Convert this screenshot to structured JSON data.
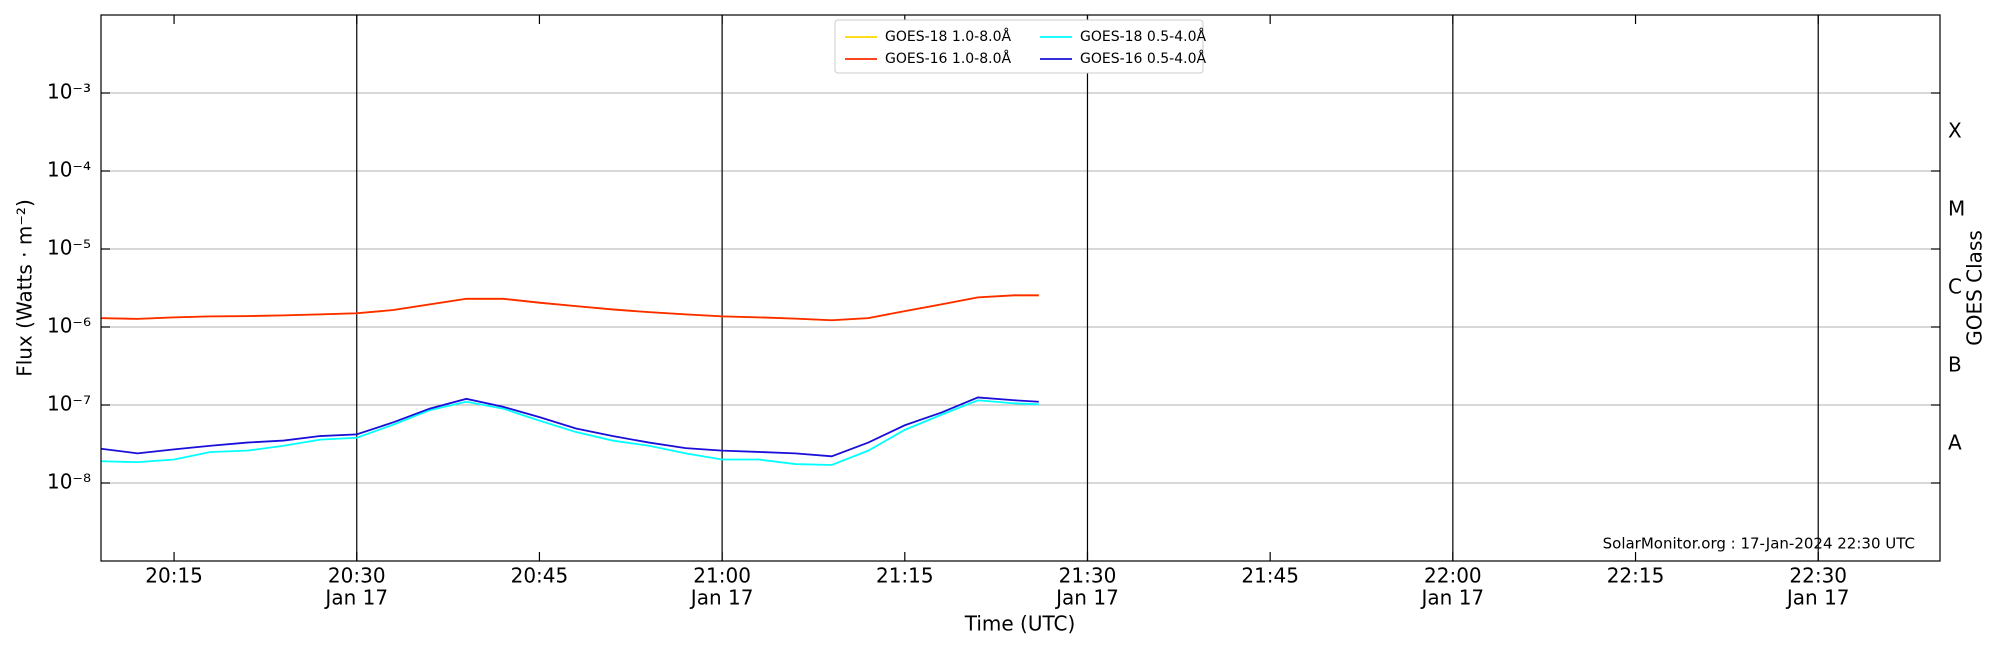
{
  "chart_data": {
    "type": "line",
    "x_label": "Time (UTC)",
    "y_label": "Flux (Watts · m⁻²)",
    "y2_label": "GOES Class",
    "annotation": "SolarMonitor.org : 17-Jan-2024 22:30 UTC",
    "yscale": "log",
    "grid": true,
    "legend": "upper center",
    "xlim": [
      "20:09",
      "22:40"
    ],
    "xticks": [
      {
        "value": "20:15",
        "label": "20:15"
      },
      {
        "value": "20:30",
        "label": "20:30",
        "date": "Jan 17"
      },
      {
        "value": "20:45",
        "label": "20:45"
      },
      {
        "value": "21:00",
        "label": "21:00",
        "date": "Jan 17"
      },
      {
        "value": "21:15",
        "label": "21:15"
      },
      {
        "value": "21:30",
        "label": "21:30",
        "date": "Jan 17"
      },
      {
        "value": "21:45",
        "label": "21:45"
      },
      {
        "value": "22:00",
        "label": "22:00",
        "date": "Jan 17"
      },
      {
        "value": "22:15",
        "label": "22:15"
      },
      {
        "value": "22:30",
        "label": "22:30",
        "date": "Jan 17"
      }
    ],
    "ylim": [
      1e-09,
      0.01
    ],
    "yticks": [
      {
        "value": 1e-08,
        "label": "10⁻⁸"
      },
      {
        "value": 1e-07,
        "label": "10⁻⁷"
      },
      {
        "value": 1e-06,
        "label": "10⁻⁶"
      },
      {
        "value": 1e-05,
        "label": "10⁻⁵"
      },
      {
        "value": 0.0001,
        "label": "10⁻⁴"
      },
      {
        "value": 0.001,
        "label": "10⁻³"
      }
    ],
    "y2lim": [
      1e-09,
      0.01
    ],
    "y2ticks": [
      {
        "value": 3.162e-08,
        "label": "A"
      },
      {
        "value": 3.162e-07,
        "label": "B"
      },
      {
        "value": 3.162e-06,
        "label": "C"
      },
      {
        "value": 3.162e-05,
        "label": "M"
      },
      {
        "value": 0.0003162,
        "label": "X"
      }
    ],
    "x": [
      "20:09",
      "20:12",
      "20:15",
      "20:18",
      "20:21",
      "20:24",
      "20:27",
      "20:30",
      "20:33",
      "20:36",
      "20:39",
      "20:42",
      "20:45",
      "20:48",
      "20:51",
      "20:54",
      "20:57",
      "21:00",
      "21:03",
      "21:06",
      "21:09",
      "21:12",
      "21:15",
      "21:18",
      "21:21",
      "21:24",
      "21:26"
    ],
    "series": [
      {
        "name": "GOES-18 1.0-8.0Å",
        "color": "#ffd700",
        "values": [
          1.3e-06,
          1.27e-06,
          1.33e-06,
          1.37e-06,
          1.38e-06,
          1.41e-06,
          1.45e-06,
          1.5e-06,
          1.65e-06,
          1.95e-06,
          2.3e-06,
          2.3e-06,
          2.05e-06,
          1.85e-06,
          1.68e-06,
          1.55e-06,
          1.45e-06,
          1.37e-06,
          1.33e-06,
          1.28e-06,
          1.22e-06,
          1.3e-06,
          1.6e-06,
          1.95e-06,
          2.4e-06,
          2.55e-06,
          2.55e-06
        ]
      },
      {
        "name": "GOES-16 1.0-8.0Å",
        "color": "#ff2a00",
        "values": [
          1.3e-06,
          1.27e-06,
          1.33e-06,
          1.37e-06,
          1.38e-06,
          1.41e-06,
          1.45e-06,
          1.5e-06,
          1.65e-06,
          1.95e-06,
          2.3e-06,
          2.3e-06,
          2.05e-06,
          1.85e-06,
          1.68e-06,
          1.55e-06,
          1.45e-06,
          1.37e-06,
          1.33e-06,
          1.28e-06,
          1.22e-06,
          1.3e-06,
          1.6e-06,
          1.95e-06,
          2.4e-06,
          2.55e-06,
          2.55e-06
        ]
      },
      {
        "name": "GOES-18 0.5-4.0Å",
        "color": "#00ffff",
        "values": [
          1.9e-08,
          1.85e-08,
          2e-08,
          2.5e-08,
          2.6e-08,
          3e-08,
          3.6e-08,
          3.8e-08,
          5.6e-08,
          8.6e-08,
          1.1e-07,
          9e-08,
          6.3e-08,
          4.5e-08,
          3.5e-08,
          3e-08,
          2.4e-08,
          2e-08,
          2e-08,
          1.75e-08,
          1.7e-08,
          2.6e-08,
          4.8e-08,
          7.5e-08,
          1.15e-07,
          1.05e-07,
          1.02e-07
        ]
      },
      {
        "name": "GOES-16 0.5-4.0Å",
        "color": "#1a0fd8",
        "values": [
          2.75e-08,
          2.4e-08,
          2.7e-08,
          3e-08,
          3.3e-08,
          3.5e-08,
          4e-08,
          4.2e-08,
          6e-08,
          9e-08,
          1.2e-07,
          9.5e-08,
          7e-08,
          5e-08,
          4e-08,
          3.3e-08,
          2.8e-08,
          2.6e-08,
          2.5e-08,
          2.4e-08,
          2.2e-08,
          3.3e-08,
          5.5e-08,
          8e-08,
          1.25e-07,
          1.15e-07,
          1.1e-07
        ]
      }
    ]
  }
}
